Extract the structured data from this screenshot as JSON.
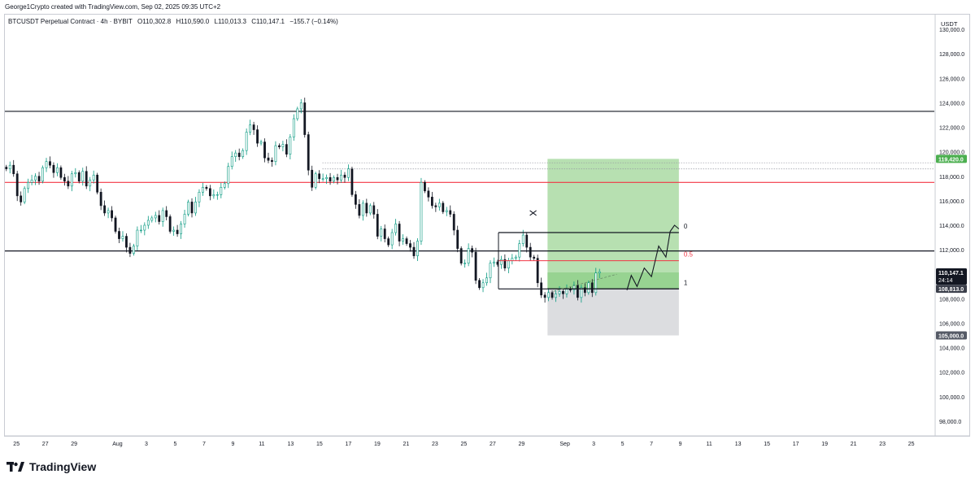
{
  "header": {
    "created_by": "George1Crypto created with TradingView.com, Sep 02, 2025 09:35 UTC+2"
  },
  "chart_title": {
    "symbol": "BTCUSDT Perpetual Contract · 4h · BYBIT",
    "open": "O110,302.8",
    "high": "H110,590.0",
    "low": "L110,013.3",
    "close": "C110,147.1",
    "change": "−155.7 (−0.14%)"
  },
  "footer": {
    "brand": "TradingView"
  },
  "colors": {
    "up": "#089981",
    "down": "#131722",
    "resistance_red": "#f23645",
    "profit_zone": "#b7e0b1",
    "loss_zone": "#dcdde0",
    "entry_green": "#4caf50",
    "tag_dark": "#131722",
    "tag_gray": "#555a66"
  },
  "chart_data": {
    "type": "candlestick",
    "currency_label": "USDT",
    "y_axis_ticks": [
      "130,000.0",
      "128,000.0",
      "126,000.0",
      "124,000.0",
      "122,000.0",
      "120,000.0",
      "118,000.0",
      "116,000.0",
      "114,000.0",
      "112,000.0",
      "110,000.0",
      "108,000.0",
      "106,000.0",
      "104,000.0",
      "102,000.0",
      "100,000.0",
      "98,000.0"
    ],
    "y_axis_values": [
      130000,
      128000,
      126000,
      124000,
      122000,
      120000,
      118000,
      116000,
      114000,
      112000,
      110000,
      108000,
      106000,
      104000,
      102000,
      100000,
      98000
    ],
    "ylim": [
      96800,
      131200
    ],
    "x_axis_ticks": [
      "25",
      "27",
      "29",
      "Aug",
      "3",
      "5",
      "7",
      "9",
      "11",
      "13",
      "15",
      "17",
      "19",
      "21",
      "23",
      "25",
      "27",
      "29",
      "Sep",
      "3",
      "5",
      "7",
      "9",
      "11",
      "13",
      "15",
      "17",
      "19",
      "21",
      "23",
      "25"
    ],
    "x_days": [
      -7,
      -5,
      -3,
      0,
      2,
      4,
      6,
      8,
      10,
      12,
      14,
      16,
      18,
      20,
      22,
      24,
      26,
      28,
      31,
      33,
      35,
      37,
      39,
      41,
      43,
      45,
      47,
      49,
      51,
      53,
      55
    ],
    "xlim": [
      -7.8,
      56.6
    ],
    "candles_close": [
      118600,
      118900,
      118200,
      116400,
      115900,
      117000,
      117500,
      117700,
      118000,
      117600,
      118700,
      119200,
      118900,
      118300,
      118700,
      117900,
      117600,
      117200,
      118200,
      118300,
      117600,
      118400,
      117200,
      117700,
      118100,
      116700,
      115600,
      115000,
      115200,
      114600,
      113500,
      112900,
      113100,
      112200,
      111700,
      112300,
      113600,
      113600,
      114000,
      114400,
      114600,
      114800,
      114300,
      115200,
      114700,
      113500,
      113600,
      113300,
      114100,
      114900,
      115900,
      115000,
      115900,
      116700,
      117100,
      117000,
      116400,
      116500,
      116500,
      117100,
      117400,
      118800,
      119600,
      119900,
      119600,
      120100,
      121600,
      122200,
      121800,
      120700,
      120800,
      119500,
      119300,
      119200,
      120500,
      120400,
      120600,
      119800,
      121200,
      122700,
      123500,
      124000,
      121400,
      118500,
      117100,
      118200,
      117800,
      117800,
      117900,
      117600,
      117900,
      117700,
      118100,
      117900,
      118600,
      116500,
      115700,
      114800,
      115800,
      115000,
      115600,
      114900,
      113100,
      113700,
      112900,
      112400,
      113400,
      114100,
      112700,
      112900,
      112500,
      112200,
      111500,
      112700,
      117500,
      116800,
      116300,
      115600,
      115500,
      115800,
      115100,
      115200,
      114900,
      113600,
      112100,
      110900,
      110900,
      112100,
      111800,
      109500,
      108900,
      109300,
      109700,
      110900,
      111000,
      110800,
      111200,
      110500,
      111100,
      111300,
      111400,
      112500,
      113200,
      112200,
      111400,
      111300,
      109300,
      108300,
      108100,
      108500,
      108100,
      108400,
      108600,
      108400,
      108800,
      108700,
      109100,
      108100,
      108900,
      108500,
      109300,
      108500,
      110100,
      110200
    ],
    "entry": 108813.0,
    "take_profit": 119420.0,
    "stop_loss": 105000.0,
    "last_price": 110147.1,
    "last_price_label": "110,147.1",
    "countdown": "24:14",
    "entry_label": "108,813.0",
    "tp_label": "119,420.0",
    "sl_label": "105,000.0",
    "horizontal_levels": [
      {
        "price": 123300,
        "color": "#131722"
      },
      {
        "price": 117500,
        "color": "#f23645"
      },
      {
        "price": 111900,
        "color": "#131722"
      }
    ],
    "dotted_levels": [
      119100,
      118600
    ],
    "fib_box": {
      "x_start": 26.4,
      "x_end": 38.9,
      "level_0": 113400,
      "level_05": 111100,
      "level_1": 108800,
      "label_0": "0",
      "label_05": "0.5",
      "label_1": "1"
    },
    "position_box": {
      "x_start": 29.8,
      "x_end": 38.9
    },
    "projection_path": [
      [
        35.3,
        108700
      ],
      [
        35.6,
        109900
      ],
      [
        36.0,
        109000
      ],
      [
        36.5,
        110500
      ],
      [
        37.0,
        109800
      ],
      [
        37.5,
        112300
      ],
      [
        38.0,
        111400
      ],
      [
        38.3,
        113500
      ],
      [
        38.6,
        114000
      ],
      [
        38.9,
        113700
      ]
    ],
    "x_marker": {
      "x": 28.8,
      "price": 115000
    },
    "legend": "none",
    "grid": false
  }
}
